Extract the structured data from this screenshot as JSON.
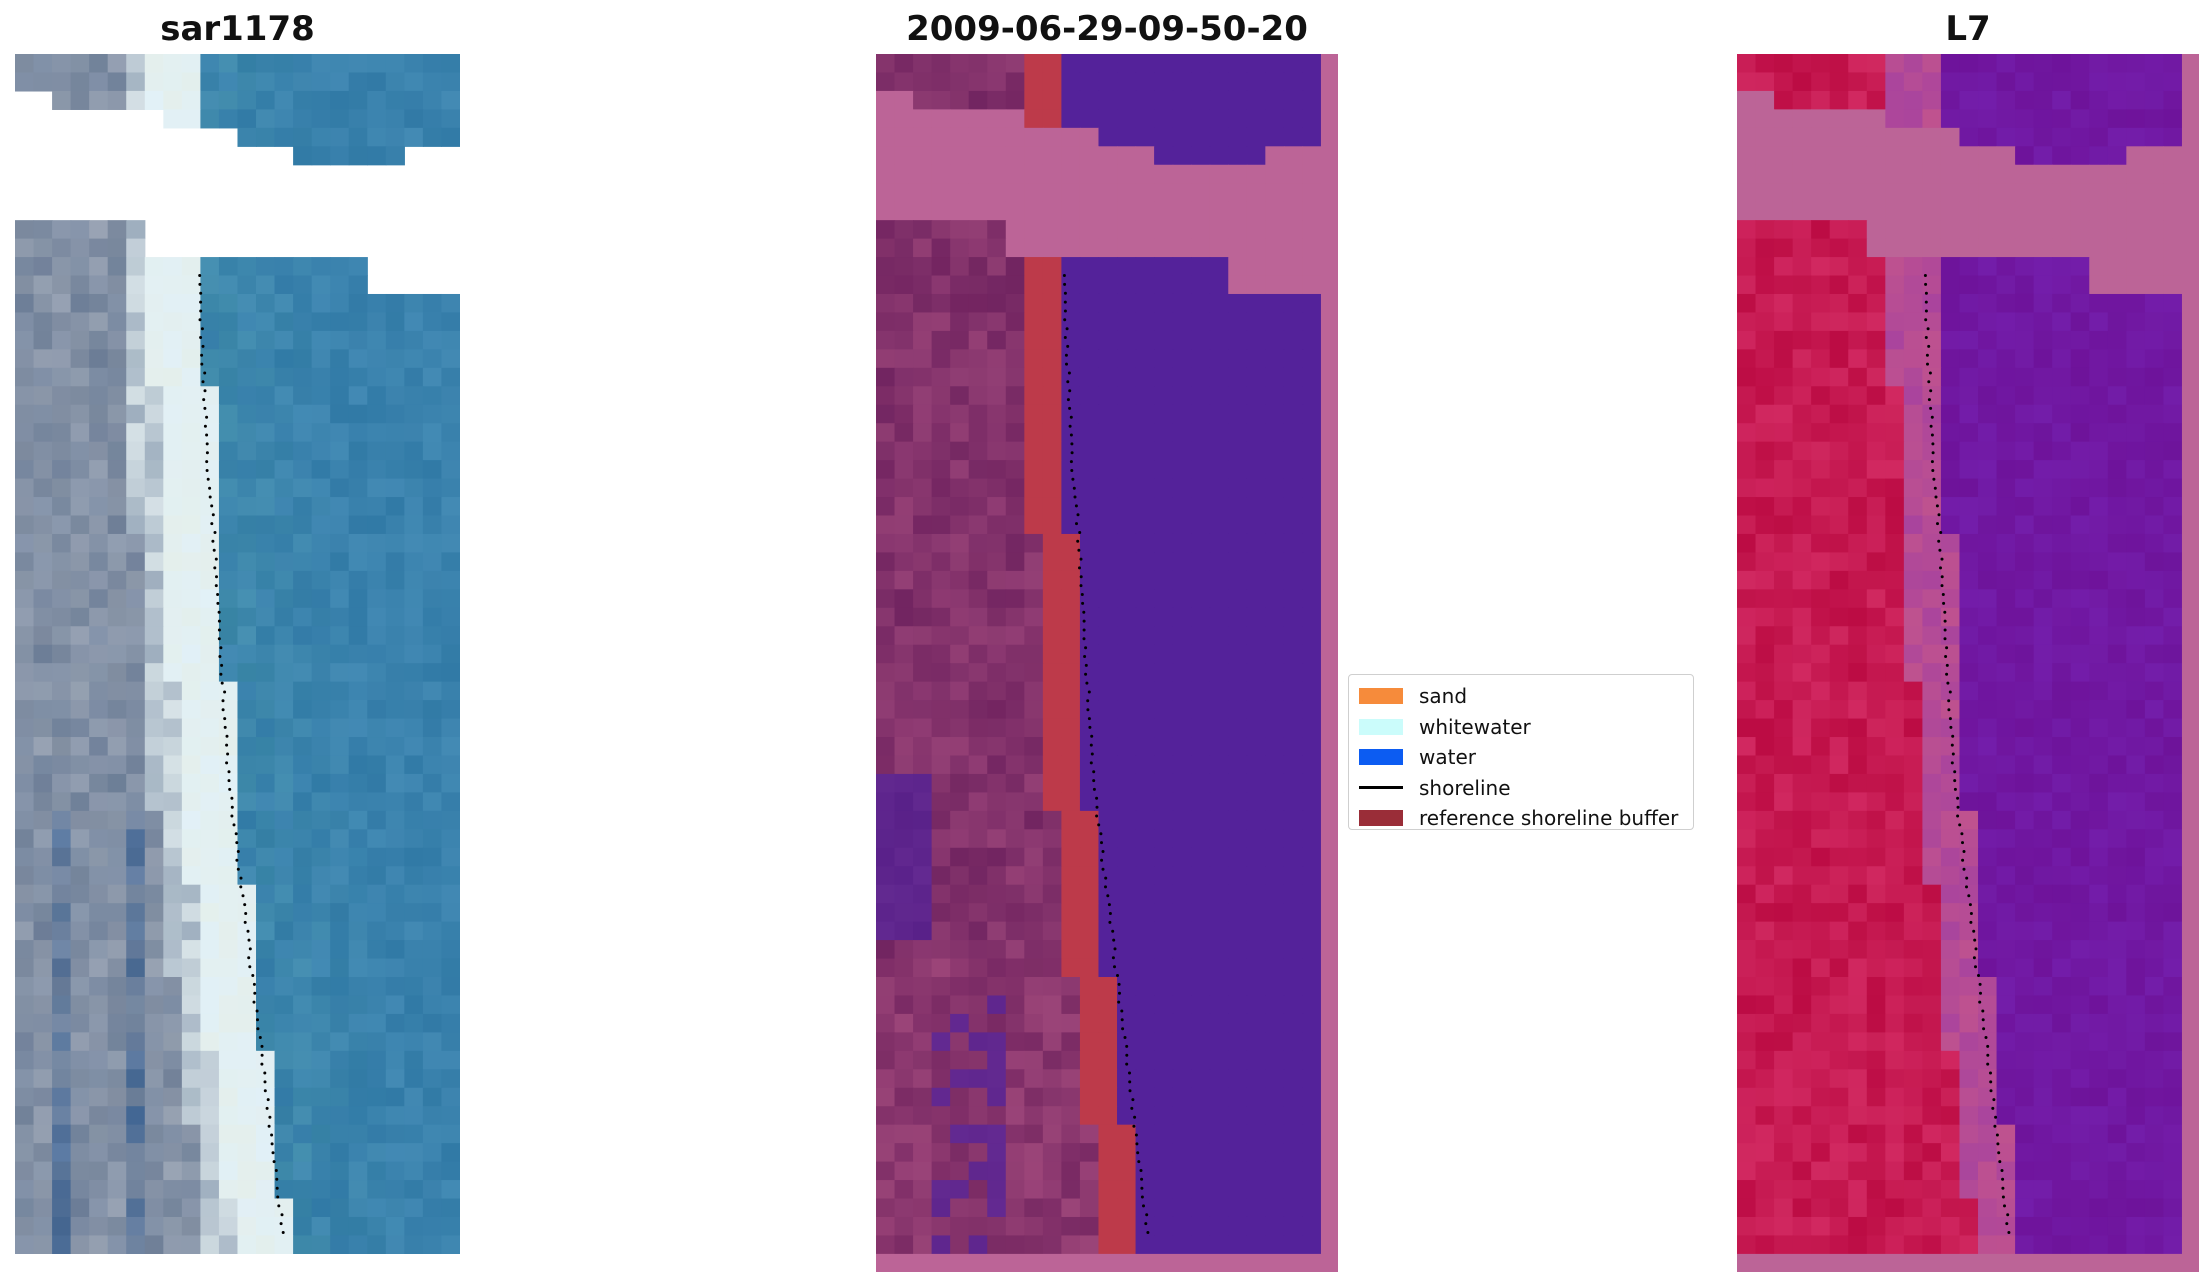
{
  "panels": [
    {
      "title": "sar1178",
      "kind": "rgb",
      "no_data": true,
      "shoreline": true
    },
    {
      "title": "2009-06-29-09-50-20",
      "kind": "classified",
      "no_data": true,
      "shoreline": true
    },
    {
      "title": "L7",
      "kind": "false_color",
      "no_data": true,
      "shoreline": true
    }
  ],
  "legend": {
    "items": [
      {
        "label": "sand",
        "color": "#f68b3b",
        "type": "patch"
      },
      {
        "label": "whitewater",
        "color": "#cbfcfb",
        "type": "patch"
      },
      {
        "label": "water",
        "color": "#0c5cf2",
        "type": "patch"
      },
      {
        "label": "shoreline",
        "color": "#000000",
        "type": "line"
      },
      {
        "label": "reference shoreline buffer",
        "color": "#9a2d38",
        "type": "patch"
      }
    ]
  },
  "colors": {
    "nodata_overlay": "#bc6497",
    "water_class": "#54229a",
    "buffer_overlay": "#bd3a4a",
    "land_tint": "#7a2c67",
    "rgb_water": "#3a82ad",
    "false_color_land": "#c4134a",
    "false_color_water": "#7519a0"
  }
}
